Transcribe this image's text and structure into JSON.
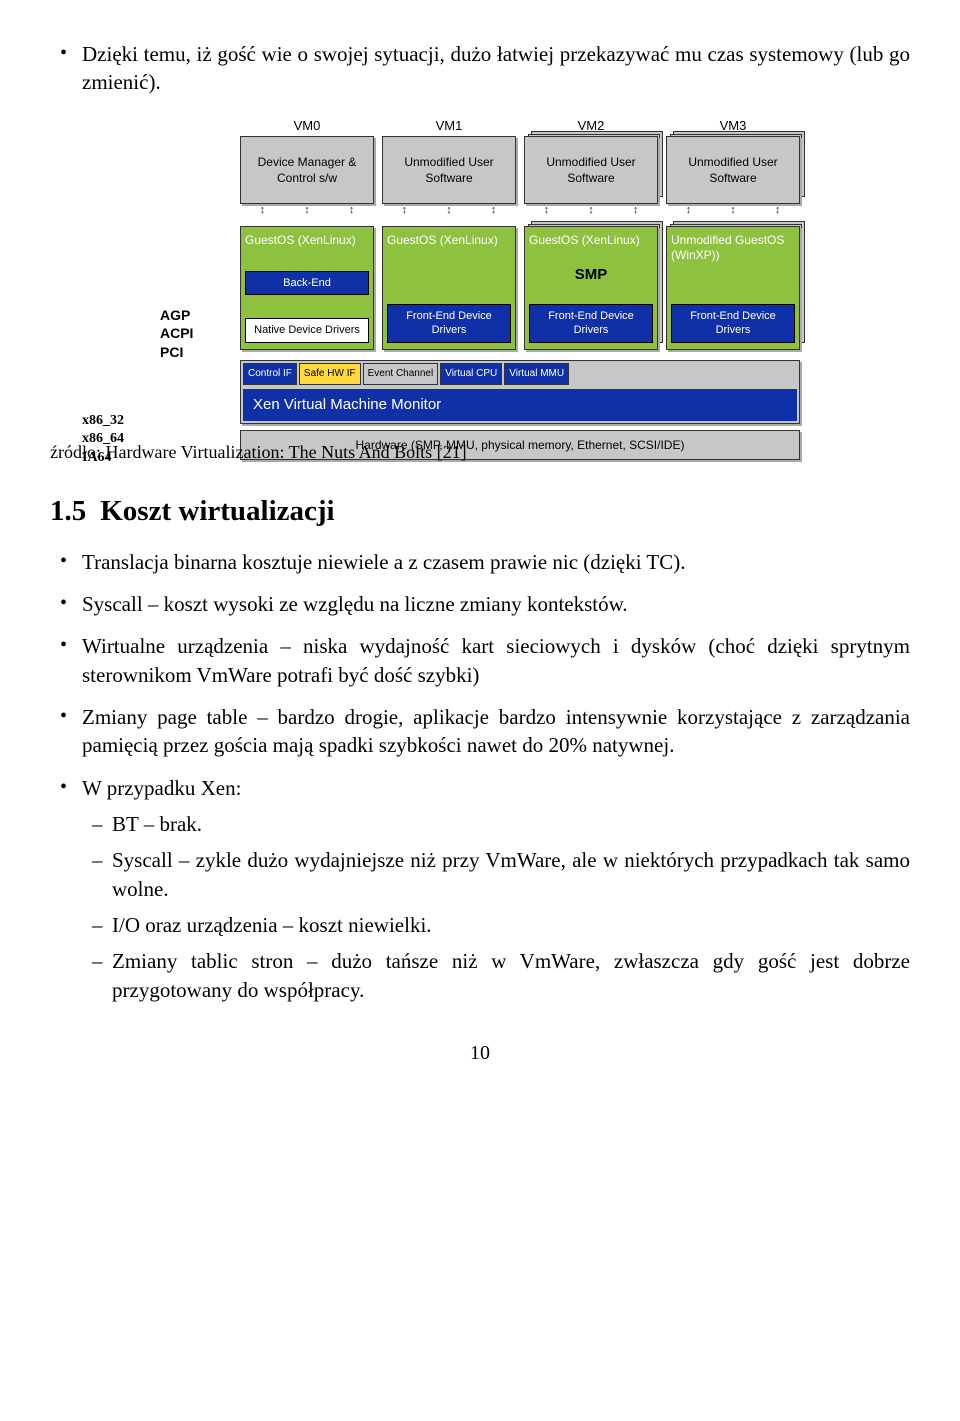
{
  "intro_bullet": "Dzięki temu, iż gość wie o swojej sytuacji, dużo łatwiej przekazywać mu czas systemowy (lub go zmienić).",
  "diagram": {
    "left_labels_mid": [
      "AGP",
      "ACPI",
      "PCI"
    ],
    "left_labels_bottom": [
      "x86_32",
      "x86_64",
      "IA64"
    ],
    "vms": [
      {
        "label": "VM0",
        "software": "Device Manager & Control s/w",
        "os_title": "GuestOS (XenLinux)",
        "inner": [
          {
            "text": "Back-End",
            "cls": "blue-box"
          },
          {
            "text": "Native Device Drivers",
            "cls": "white-box"
          }
        ],
        "stacked": false
      },
      {
        "label": "VM1",
        "software": "Unmodified User Software",
        "os_title": "GuestOS (XenLinux)",
        "inner": [
          {
            "text": "Front-End Device Drivers",
            "cls": "blue-box"
          }
        ],
        "stacked": false
      },
      {
        "label": "VM2",
        "software": "Unmodified User Software",
        "os_title": "GuestOS (XenLinux)",
        "smp": "SMP",
        "inner": [
          {
            "text": "Front-End Device Drivers",
            "cls": "blue-box"
          }
        ],
        "stacked": true
      },
      {
        "label": "VM3",
        "software": "Unmodified User Software",
        "os_title": "Unmodified GuestOS (WinXP))",
        "inner": [
          {
            "text": "Front-End Device Drivers",
            "cls": "blue-box"
          }
        ],
        "stacked": true
      }
    ],
    "mini_boxes": [
      {
        "text": "Control IF",
        "cls": "mini-blue"
      },
      {
        "text": "Safe HW IF",
        "cls": "mini-yellow"
      },
      {
        "text": "Event Channel",
        "cls": "mini-grey"
      },
      {
        "text": "Virtual CPU",
        "cls": "mini-blue"
      },
      {
        "text": "Virtual MMU",
        "cls": "mini-blue"
      }
    ],
    "xen_bar": "Xen Virtual Machine Monitor",
    "hw_bar": "Hardware (SMP, MMU, physical memory, Ethernet, SCSI/IDE)",
    "colors": {
      "green": "#8EC13F",
      "blue": "#1030A8",
      "yellow": "#FFD83B",
      "grey": "#c7c7c7"
    }
  },
  "source_label": "źródło: Hardware Virtualization: The Nuts And Bolts [21]",
  "section": {
    "number": "1.5",
    "title": "Koszt wirtualizacji"
  },
  "main_bullets": [
    "Translacja binarna kosztuje niewiele a z czasem prawie nic (dzięki TC).",
    "Syscall – koszt wysoki ze względu na liczne zmiany kontekstów.",
    "Wirtualne urządzenia – niska wydajność kart sieciowych i dysków (choć dzięki sprytnym sterownikom VmWare potrafi być dość szybki)",
    "Zmiany page table – bardzo drogie, aplikacje bardzo intensywnie korzystające z zarządzania pamięcią przez gościa mają spadki szybkości nawet do 20% natywnej.",
    "W przypadku Xen:"
  ],
  "xen_subbullets": [
    "BT – brak.",
    "Syscall – zykle dużo wydajniejsze niż przy VmWare, ale w niektórych przypadkach tak samo wolne.",
    "I/O oraz urządzenia – koszt niewielki.",
    "Zmiany tablic stron – dużo tańsze niż w VmWare, zwłaszcza gdy gość jest dobrze przygotowany do współpracy."
  ],
  "page_number": "10"
}
